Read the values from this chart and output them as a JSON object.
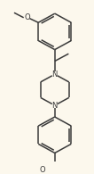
{
  "background_color": "#fcf8ed",
  "line_color": "#3a3a3a",
  "line_width": 1.1,
  "figsize": [
    1.06,
    1.95
  ],
  "dpi": 100,
  "font_size": 5.5,
  "xlim": [
    0,
    106
  ],
  "ylim": [
    0,
    195
  ]
}
